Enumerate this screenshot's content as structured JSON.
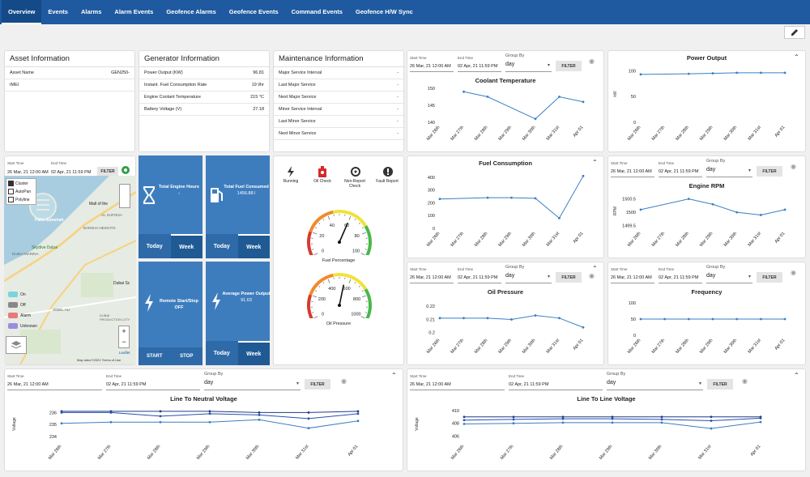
{
  "nav": {
    "tabs": [
      "Overview",
      "Events",
      "Alarms",
      "Alarm Events",
      "Geofence Alarms",
      "Geofence Events",
      "Command Events",
      "Geofence H/W Sync"
    ]
  },
  "asset": {
    "title": "Asset Information",
    "rows": [
      {
        "k": "Asset Name",
        "v": "GEN250-"
      },
      {
        "k": "IMEI",
        "v": ""
      }
    ]
  },
  "generator": {
    "title": "Generator Information",
    "rows": [
      {
        "k": "Power Output (KW)",
        "v": "96.81"
      },
      {
        "k": "Instant. Fuel Consumption Rate",
        "v": "19 l/hr"
      },
      {
        "k": "Engine Coolant Temperature",
        "v": "215 °C"
      },
      {
        "k": "Battery Voltage (V)",
        "v": "27.18"
      }
    ]
  },
  "maintenance": {
    "title": "Maintenance Information",
    "rows": [
      {
        "k": "Major Service Interval",
        "v": "-"
      },
      {
        "k": "Last Major Service",
        "v": "-"
      },
      {
        "k": "Next Major Service",
        "v": "-"
      },
      {
        "k": "Minor Service Interval",
        "v": "-"
      },
      {
        "k": "Last Minor Service",
        "v": "-"
      },
      {
        "k": "Next Minor Service",
        "v": "-"
      }
    ]
  },
  "filters": {
    "start_label": "Start Time",
    "end_label": "End Time",
    "group_label": "Group By",
    "start": "26 Mar, 21 12:00 AM",
    "end": "02 Apr, 21 11:59 PM",
    "group": "day",
    "button": "FILTER"
  },
  "map": {
    "legend": [
      "On",
      "Off",
      "Alarm",
      "Unknown"
    ],
    "checks": [
      "Cluster",
      "AutoPan",
      "Polyline"
    ],
    "labels": [
      "Mall of the",
      "Palm Jumeirah",
      "Skydive Dubai",
      "Dubai Sc",
      "BARSHA HEIGHTS",
      "AL SUFOUH",
      "DUBAI MARINA",
      "JEBEL ALI",
      "DUBAI PRODUCTION CITY",
      "Leaflet"
    ],
    "credit": "Map data ©2021  Terms of Use",
    "map_colors": {
      "on": "#7ad3e0",
      "off": "#888888",
      "alarm": "#e87a7a",
      "unknown": "#9b8ce0"
    }
  },
  "tiles": {
    "engine_hours": {
      "title": "Total Engine Hours",
      "value": "-",
      "tabs": [
        "Today",
        "Week"
      ]
    },
    "fuel_consumed": {
      "title": "Total Fuel Consumed",
      "value": "1456.88 l",
      "tabs": [
        "Today",
        "Week"
      ]
    },
    "remote": {
      "title": "Remote Start/Stop",
      "value": "OFF",
      "tabs": [
        "START",
        "STOP"
      ]
    },
    "avg_power": {
      "title": "Average Power Output",
      "value": "91.63",
      "tabs": [
        "Today",
        "Week"
      ]
    }
  },
  "status": {
    "items": [
      "Running",
      "Oil Check",
      "Non-Report Check",
      "Fault Report"
    ]
  },
  "gauges": {
    "fuel": {
      "label": "Fuel Percentage",
      "ticks": [
        "0",
        "20",
        "40",
        "60",
        "80",
        "100"
      ],
      "value": 60
    },
    "oil": {
      "label": "Oil Pressure",
      "ticks": [
        "0",
        "200",
        "400",
        "600",
        "800",
        "1000"
      ],
      "value": 550
    }
  },
  "x_dates": [
    "Mar 26th",
    "Mar 27th",
    "Mar 28th",
    "Mar 29th",
    "Mar 30th",
    "Mar 31st",
    "Apr 01"
  ],
  "chart_data": [
    {
      "type": "line",
      "title": "Coolant Temperature",
      "x": [
        "Mar 26th",
        "Mar 27th",
        "Mar 28th",
        "Mar 29th",
        "Mar 30th",
        "Mar 31st",
        "Apr 01"
      ],
      "series": [
        {
          "values": [
            null,
            149,
            147.5,
            null,
            141,
            147.5,
            146
          ]
        }
      ],
      "ylim": [
        140,
        150
      ],
      "yticks": [
        140,
        145,
        150
      ]
    },
    {
      "type": "line",
      "title": "Power Output",
      "x": [
        "Mar 26th",
        "Mar 27th",
        "Mar 28th",
        "Mar 29th",
        "Mar 30th",
        "Mar 31st",
        "Apr 01"
      ],
      "series": [
        {
          "values": [
            93,
            null,
            94,
            95,
            96,
            96,
            96
          ]
        }
      ],
      "ylim": [
        0,
        110
      ],
      "yticks": [
        0,
        50,
        100
      ],
      "ylabel": "kW"
    },
    {
      "type": "line",
      "title": "Fuel Consumption",
      "x": [
        "Mar 26th",
        "Mar 27th",
        "Mar 28th",
        "Mar 29th",
        "Mar 30th",
        "Mar 31st",
        "Apr 01"
      ],
      "series": [
        {
          "values": [
            230,
            null,
            240,
            240,
            235,
            80,
            410
          ]
        }
      ],
      "ylim": [
        0,
        450
      ],
      "yticks": [
        0,
        100,
        200,
        300,
        400
      ]
    },
    {
      "type": "line",
      "title": "Engine RPM",
      "x": [
        "Mar 26th",
        "Mar 27th",
        "Mar 28th",
        "Mar 29th",
        "Mar 30th",
        "Mar 31st",
        "Apr 01"
      ],
      "series": [
        {
          "values": [
            1500.1,
            null,
            1500.5,
            1500.3,
            1500.0,
            1499.9,
            1500.1
          ]
        }
      ],
      "ylim": [
        1499.4,
        1500.7
      ],
      "yticks": [
        1499.5,
        1500,
        1500.5
      ],
      "ylabel": "RPM"
    },
    {
      "type": "line",
      "title": "Oil Pressure",
      "x": [
        "Mar 26th",
        "Mar 27th",
        "Mar 28th",
        "Mar 29th",
        "Mar 30th",
        "Mar 31st",
        "Apr 01"
      ],
      "series": [
        {
          "values": [
            0.211,
            0.211,
            0.211,
            0.21,
            0.213,
            0.211,
            0.204
          ]
        }
      ],
      "ylim": [
        0.198,
        0.225
      ],
      "yticks": [
        0.2,
        0.21,
        0.22
      ]
    },
    {
      "type": "line",
      "title": "Frequency",
      "x": [
        "Mar 26th",
        "Mar 27th",
        "Mar 28th",
        "Mar 29th",
        "Mar 30th",
        "Mar 31st",
        "Apr 01"
      ],
      "series": [
        {
          "values": [
            50,
            50,
            50,
            50,
            50,
            50,
            50
          ]
        }
      ],
      "ylim": [
        0,
        110
      ],
      "yticks": [
        0,
        50,
        100
      ]
    },
    {
      "type": "line",
      "title": "Line To Neutral Voltage",
      "x": [
        "Mar 26th",
        "Mar 27th",
        "Mar 28th",
        "Mar 29th",
        "Mar 30th",
        "Mar 31st",
        "Apr 01"
      ],
      "series": [
        {
          "values": [
            236.1,
            236.1,
            236.1,
            236.1,
            236,
            236,
            236.1
          ]
        },
        {
          "values": [
            236,
            236,
            235.7,
            235.9,
            235.8,
            235.5,
            235.9
          ]
        },
        {
          "values": [
            235.1,
            235.2,
            235.2,
            235.2,
            235.4,
            234.7,
            235.3
          ]
        }
      ],
      "ylim": [
        233.6,
        236.5
      ],
      "yticks": [
        234,
        235,
        236
      ],
      "ylabel": "Voltage"
    },
    {
      "type": "line",
      "title": "Line To Line Voltage",
      "x": [
        "Mar 26th",
        "Mar 27th",
        "Mar 28th",
        "Mar 29th",
        "Mar 30th",
        "Mar 31st",
        "Apr 01"
      ],
      "series": [
        {
          "values": [
            409,
            409,
            409,
            409,
            409,
            409,
            409
          ]
        },
        {
          "values": [
            408.5,
            408.6,
            408.7,
            408.7,
            408.6,
            408.4,
            408.8
          ]
        },
        {
          "values": [
            407.9,
            408,
            408.1,
            408.1,
            408.1,
            407.2,
            408.2
          ]
        }
      ],
      "ylim": [
        405.2,
        410.6
      ],
      "yticks": [
        406,
        408,
        410
      ],
      "ylabel": "Voltage"
    }
  ],
  "colors": {
    "nav": "#1f5aa0",
    "tile": "#3e7dbd",
    "line": "#3a7fc1",
    "line_dark": "#1f3a8a"
  }
}
